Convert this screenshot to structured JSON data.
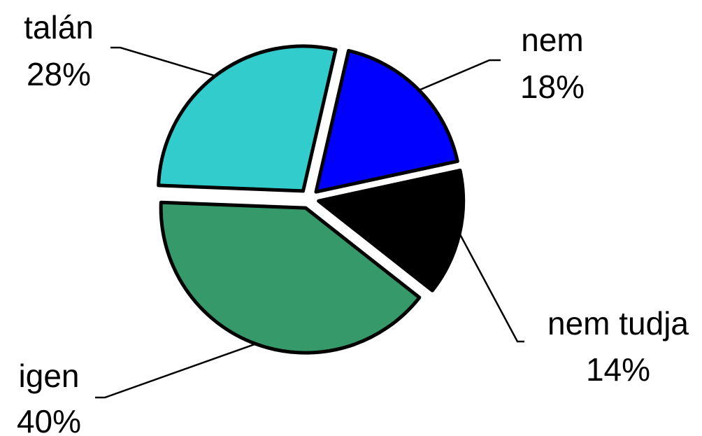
{
  "chart_data": {
    "type": "pie",
    "title": "",
    "slices": [
      {
        "label": "nem",
        "value": 18,
        "value_label": "18%",
        "color": "#0000FF"
      },
      {
        "label": "nem tudja",
        "value": 14,
        "value_label": "14%",
        "color": "#000000"
      },
      {
        "label": "igen",
        "value": 40,
        "value_label": "40%",
        "color": "#36996A"
      },
      {
        "label": "talán",
        "value": 28,
        "value_label": "28%",
        "color": "#33CCCC"
      }
    ],
    "exploded": true,
    "legend": "none"
  }
}
